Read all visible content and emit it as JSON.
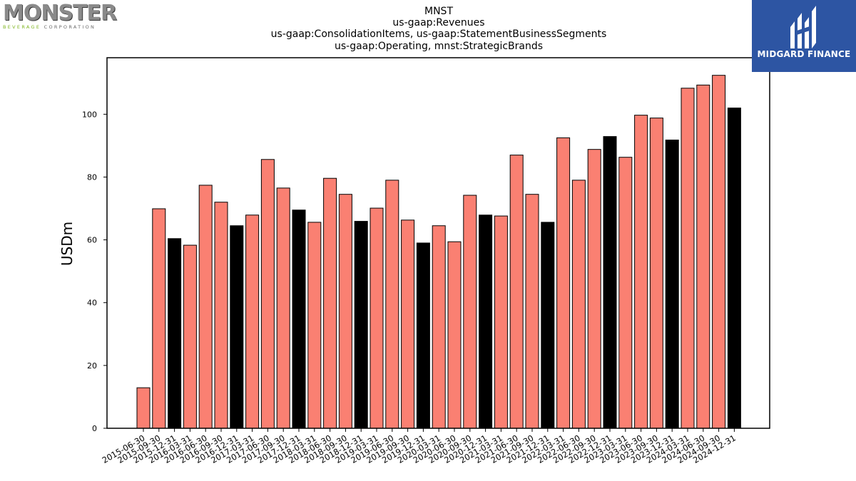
{
  "logos": {
    "left": {
      "word": "MONSTER",
      "sub_green": "BEVERAGE",
      "sub_rest": " CORPORATION"
    },
    "right": {
      "text": "MIDGARD FINANCE"
    }
  },
  "colors": {
    "normal_bar": "#fa8072",
    "q4_bar": "#000000",
    "edge": "#000000"
  },
  "chart_data": {
    "type": "bar",
    "title": [
      "MNST",
      "us-gaap:Revenues",
      "us-gaap:ConsolidationItems, us-gaap:StatementBusinessSegments",
      "us-gaap:Operating, mnst:StrategicBrands"
    ],
    "xlabel": "",
    "ylabel": "USDm",
    "ylim": [
      0,
      118
    ],
    "yticks": [
      0,
      20,
      40,
      60,
      80,
      100
    ],
    "grid": false,
    "categories": [
      "2015-06-30",
      "2015-09-30",
      "2015-12-31",
      "2016-03-31",
      "2016-06-30",
      "2016-09-30",
      "2016-12-31",
      "2017-03-31",
      "2017-06-30",
      "2017-09-30",
      "2017-12-31",
      "2018-03-31",
      "2018-06-30",
      "2018-09-30",
      "2018-12-31",
      "2019-03-31",
      "2019-06-30",
      "2019-09-30",
      "2019-12-31",
      "2020-03-31",
      "2020-06-30",
      "2020-09-30",
      "2020-12-31",
      "2021-03-31",
      "2021-06-30",
      "2021-09-30",
      "2021-12-31",
      "2022-03-31",
      "2022-06-30",
      "2022-09-30",
      "2022-12-31",
      "2023-03-31",
      "2023-06-30",
      "2023-09-30",
      "2023-12-31",
      "2024-03-31",
      "2024-06-30",
      "2024-09-30",
      "2024-12-31"
    ],
    "values": [
      12.9,
      69.9,
      60.4,
      58.3,
      77.4,
      72.0,
      64.5,
      67.9,
      85.6,
      76.5,
      69.5,
      65.6,
      79.6,
      74.5,
      65.9,
      70.1,
      79.0,
      66.3,
      59.0,
      64.5,
      59.4,
      74.2,
      67.9,
      67.6,
      87.0,
      74.5,
      65.6,
      92.5,
      79.0,
      88.8,
      92.9,
      86.3,
      99.7,
      98.8,
      91.8,
      108.3,
      109.3,
      112.4,
      102.0
    ],
    "highlight_q4": [
      false,
      false,
      true,
      false,
      false,
      false,
      true,
      false,
      false,
      false,
      true,
      false,
      false,
      false,
      true,
      false,
      false,
      false,
      true,
      false,
      false,
      false,
      true,
      false,
      false,
      false,
      true,
      false,
      false,
      false,
      true,
      false,
      false,
      false,
      true,
      false,
      false,
      false,
      true
    ]
  }
}
